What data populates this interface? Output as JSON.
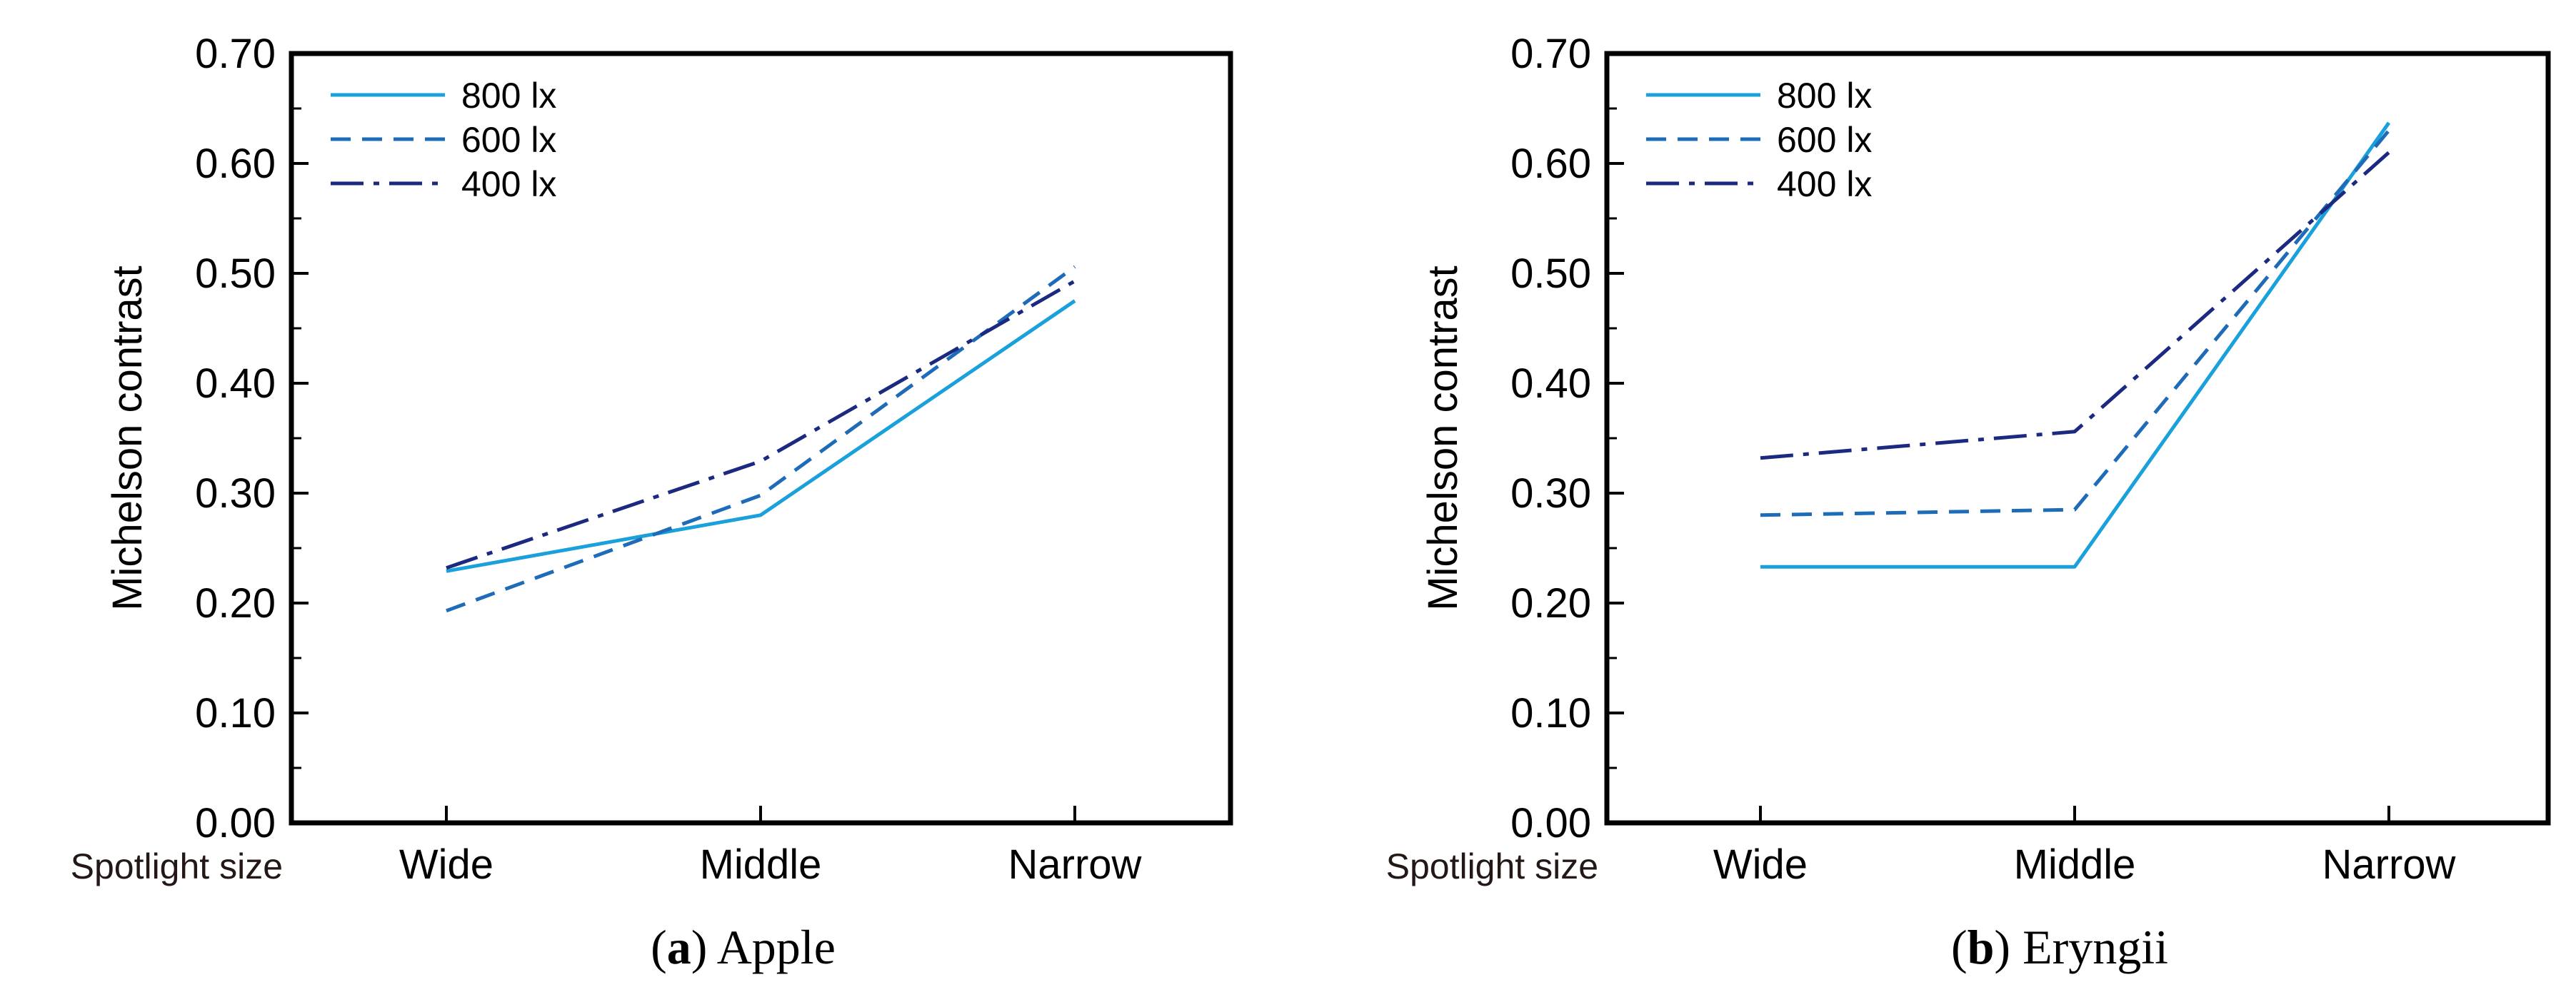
{
  "colors": {
    "lux_800": "#1aa0db",
    "lux_600": "#1e6bb8",
    "lux_400": "#1b2a80",
    "axis": "#000000",
    "spotlight_label": "#231815"
  },
  "chart_data": [
    {
      "type": "line",
      "title": "",
      "caption_letter": "a",
      "caption_name": "Apple",
      "categories": [
        "Wide",
        "Middle",
        "Narrow"
      ],
      "category_axis_label": "Spotlight size",
      "xlabel": "",
      "ylabel": "Michelson contrast",
      "ylim": [
        0.0,
        0.7
      ],
      "ytick_labels": [
        "0.00",
        "0.10",
        "0.20",
        "0.30",
        "0.40",
        "0.50",
        "0.60",
        "0.70"
      ],
      "grid": false,
      "legend_position": "top-left",
      "series": [
        {
          "name": "800 lx",
          "values": [
            0.229,
            0.28,
            0.475
          ]
        },
        {
          "name": "600 lx",
          "values": [
            0.193,
            0.298,
            0.506
          ]
        },
        {
          "name": "400 lx",
          "values": [
            0.232,
            0.329,
            0.493
          ]
        }
      ]
    },
    {
      "type": "line",
      "title": "",
      "caption_letter": "b",
      "caption_name": "Eryngii",
      "categories": [
        "Wide",
        "Middle",
        "Narrow"
      ],
      "category_axis_label": "Spotlight size",
      "xlabel": "",
      "ylabel": "Michelson contrast",
      "ylim": [
        0.0,
        0.7
      ],
      "ytick_labels": [
        "0.00",
        "0.10",
        "0.20",
        "0.30",
        "0.40",
        "0.50",
        "0.60",
        "0.70"
      ],
      "grid": false,
      "legend_position": "top-left",
      "series": [
        {
          "name": "800 lx",
          "values": [
            0.233,
            0.233,
            0.637
          ]
        },
        {
          "name": "600 lx",
          "values": [
            0.28,
            0.285,
            0.63
          ]
        },
        {
          "name": "400 lx",
          "values": [
            0.332,
            0.356,
            0.61
          ]
        }
      ]
    }
  ]
}
